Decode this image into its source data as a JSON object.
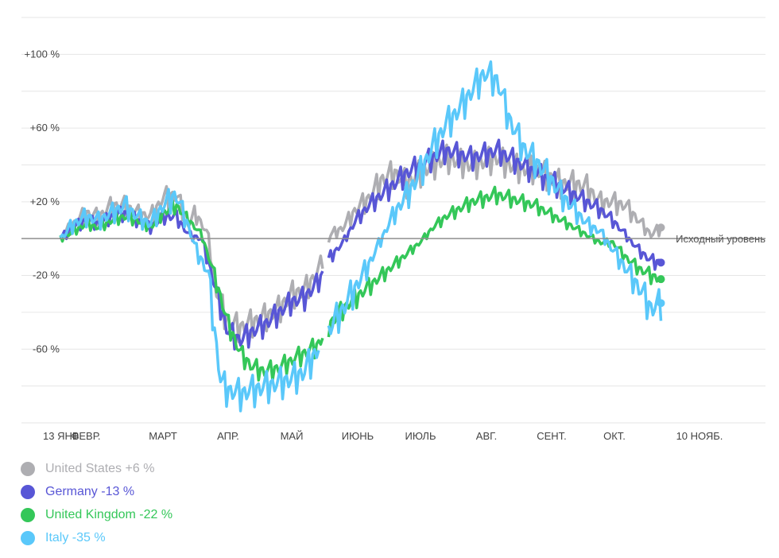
{
  "chart_data": {
    "type": "line",
    "title": "",
    "xlabel": "",
    "ylabel": "",
    "ylim": [
      -100,
      120
    ],
    "y_ticks": [
      {
        "value": 100,
        "label": "+100 %"
      },
      {
        "value": 60,
        "label": "+60 %"
      },
      {
        "value": 20,
        "label": "+20 %"
      },
      {
        "value": -20,
        "label": "-20 %"
      },
      {
        "value": -60,
        "label": "-60 %"
      }
    ],
    "x_ticks": [
      "13 ЯНВ.",
      "ФЕВР.",
      "МАРТ",
      "АПР.",
      "МАЙ",
      "ИЮНЬ",
      "ИЮЛЬ",
      "АВГ.",
      "СЕНТ.",
      "ОКТ.",
      "10 НОЯБ."
    ],
    "baseline_label": "Исходный уровень",
    "grid": true,
    "legend_position": "bottom-left",
    "series": [
      {
        "name": "United States",
        "legend": "United States +6 %",
        "color": "#aeaeb2",
        "anchors": [
          [
            0,
            0
          ],
          [
            0.02,
            8
          ],
          [
            0.04,
            14
          ],
          [
            0.06,
            12
          ],
          [
            0.08,
            18
          ],
          [
            0.1,
            18
          ],
          [
            0.12,
            14
          ],
          [
            0.14,
            12
          ],
          [
            0.16,
            22
          ],
          [
            0.18,
            24
          ],
          [
            0.2,
            8
          ],
          [
            0.21,
            14
          ],
          [
            0.23,
            2
          ],
          [
            0.24,
            -25
          ],
          [
            0.26,
            -45
          ],
          [
            0.28,
            -48
          ],
          [
            0.3,
            -45
          ],
          [
            0.32,
            -42
          ],
          [
            0.34,
            -38
          ],
          [
            0.36,
            -30
          ],
          [
            0.38,
            -28
          ],
          [
            0.4,
            -18
          ],
          [
            0.41,
            -10
          ],
          [
            0.42,
            2
          ],
          [
            0.44,
            6
          ],
          [
            0.46,
            16
          ],
          [
            0.48,
            22
          ],
          [
            0.5,
            32
          ],
          [
            0.52,
            36
          ],
          [
            0.54,
            30
          ],
          [
            0.56,
            36
          ],
          [
            0.58,
            40
          ],
          [
            0.6,
            44
          ],
          [
            0.62,
            42
          ],
          [
            0.64,
            40
          ],
          [
            0.66,
            42
          ],
          [
            0.68,
            44
          ],
          [
            0.7,
            40
          ],
          [
            0.72,
            38
          ],
          [
            0.74,
            38
          ],
          [
            0.76,
            34
          ],
          [
            0.78,
            30
          ],
          [
            0.8,
            30
          ],
          [
            0.82,
            28
          ],
          [
            0.84,
            20
          ],
          [
            0.86,
            20
          ],
          [
            0.88,
            18
          ],
          [
            0.9,
            10
          ],
          [
            0.92,
            2
          ],
          [
            0.935,
            6
          ]
        ],
        "amp": 7,
        "gaps": [
          [
            0.41,
            0.415
          ]
        ]
      },
      {
        "name": "Germany",
        "legend": "Germany -13 %",
        "color": "#5856d6",
        "anchors": [
          [
            0,
            0
          ],
          [
            0.02,
            6
          ],
          [
            0.04,
            10
          ],
          [
            0.06,
            8
          ],
          [
            0.08,
            12
          ],
          [
            0.1,
            14
          ],
          [
            0.12,
            10
          ],
          [
            0.14,
            6
          ],
          [
            0.16,
            12
          ],
          [
            0.18,
            12
          ],
          [
            0.2,
            2
          ],
          [
            0.22,
            0
          ],
          [
            0.24,
            -25
          ],
          [
            0.26,
            -50
          ],
          [
            0.28,
            -55
          ],
          [
            0.3,
            -50
          ],
          [
            0.32,
            -46
          ],
          [
            0.34,
            -40
          ],
          [
            0.36,
            -34
          ],
          [
            0.38,
            -32
          ],
          [
            0.4,
            -24
          ],
          [
            0.41,
            -18
          ],
          [
            0.42,
            -10
          ],
          [
            0.44,
            -2
          ],
          [
            0.46,
            10
          ],
          [
            0.48,
            18
          ],
          [
            0.5,
            24
          ],
          [
            0.52,
            30
          ],
          [
            0.54,
            36
          ],
          [
            0.56,
            40
          ],
          [
            0.58,
            44
          ],
          [
            0.6,
            48
          ],
          [
            0.62,
            46
          ],
          [
            0.64,
            44
          ],
          [
            0.66,
            46
          ],
          [
            0.68,
            48
          ],
          [
            0.7,
            44
          ],
          [
            0.72,
            40
          ],
          [
            0.74,
            36
          ],
          [
            0.76,
            32
          ],
          [
            0.78,
            28
          ],
          [
            0.8,
            24
          ],
          [
            0.82,
            20
          ],
          [
            0.84,
            16
          ],
          [
            0.86,
            10
          ],
          [
            0.88,
            2
          ],
          [
            0.9,
            -6
          ],
          [
            0.92,
            -12
          ],
          [
            0.935,
            -13
          ]
        ],
        "amp": 6,
        "gaps": [
          [
            0.41,
            0.415
          ]
        ]
      },
      {
        "name": "United Kingdom",
        "legend": "United Kingdom -22 %",
        "color": "#34c759",
        "anchors": [
          [
            0,
            0
          ],
          [
            0.02,
            4
          ],
          [
            0.04,
            8
          ],
          [
            0.06,
            6
          ],
          [
            0.08,
            10
          ],
          [
            0.1,
            12
          ],
          [
            0.12,
            10
          ],
          [
            0.14,
            6
          ],
          [
            0.16,
            14
          ],
          [
            0.18,
            18
          ],
          [
            0.2,
            10
          ],
          [
            0.22,
            2
          ],
          [
            0.24,
            -20
          ],
          [
            0.26,
            -45
          ],
          [
            0.28,
            -62
          ],
          [
            0.3,
            -70
          ],
          [
            0.32,
            -72
          ],
          [
            0.34,
            -70
          ],
          [
            0.36,
            -66
          ],
          [
            0.38,
            -62
          ],
          [
            0.4,
            -58
          ],
          [
            0.41,
            -52
          ],
          [
            0.42,
            -46
          ],
          [
            0.44,
            -38
          ],
          [
            0.46,
            -32
          ],
          [
            0.48,
            -26
          ],
          [
            0.5,
            -20
          ],
          [
            0.52,
            -14
          ],
          [
            0.54,
            -8
          ],
          [
            0.56,
            -2
          ],
          [
            0.58,
            6
          ],
          [
            0.6,
            12
          ],
          [
            0.62,
            16
          ],
          [
            0.64,
            20
          ],
          [
            0.66,
            22
          ],
          [
            0.68,
            24
          ],
          [
            0.7,
            22
          ],
          [
            0.72,
            20
          ],
          [
            0.74,
            18
          ],
          [
            0.76,
            14
          ],
          [
            0.78,
            10
          ],
          [
            0.8,
            6
          ],
          [
            0.82,
            2
          ],
          [
            0.84,
            -2
          ],
          [
            0.86,
            -2
          ],
          [
            0.88,
            -10
          ],
          [
            0.9,
            -16
          ],
          [
            0.92,
            -20
          ],
          [
            0.935,
            -22
          ]
        ],
        "amp": 5,
        "gaps": [
          [
            0.41,
            0.415
          ]
        ]
      },
      {
        "name": "Italy",
        "legend": "Italy -35 %",
        "color": "#5ac8fa",
        "anchors": [
          [
            0,
            0
          ],
          [
            0.02,
            8
          ],
          [
            0.04,
            12
          ],
          [
            0.06,
            10
          ],
          [
            0.08,
            14
          ],
          [
            0.1,
            18
          ],
          [
            0.12,
            12
          ],
          [
            0.14,
            8
          ],
          [
            0.16,
            18
          ],
          [
            0.18,
            24
          ],
          [
            0.2,
            6
          ],
          [
            0.21,
            -5
          ],
          [
            0.22,
            -12
          ],
          [
            0.23,
            -18
          ],
          [
            0.24,
            -50
          ],
          [
            0.25,
            -78
          ],
          [
            0.26,
            -82
          ],
          [
            0.28,
            -84
          ],
          [
            0.3,
            -82
          ],
          [
            0.32,
            -80
          ],
          [
            0.34,
            -78
          ],
          [
            0.36,
            -76
          ],
          [
            0.38,
            -72
          ],
          [
            0.39,
            -66
          ],
          [
            0.4,
            -60
          ],
          [
            0.41,
            -55
          ],
          [
            0.42,
            -48
          ],
          [
            0.44,
            -38
          ],
          [
            0.46,
            -26
          ],
          [
            0.48,
            -14
          ],
          [
            0.5,
            0
          ],
          [
            0.52,
            14
          ],
          [
            0.54,
            24
          ],
          [
            0.56,
            36
          ],
          [
            0.58,
            50
          ],
          [
            0.6,
            62
          ],
          [
            0.62,
            70
          ],
          [
            0.64,
            80
          ],
          [
            0.66,
            90
          ],
          [
            0.68,
            86
          ],
          [
            0.7,
            64
          ],
          [
            0.72,
            50
          ],
          [
            0.74,
            42
          ],
          [
            0.76,
            34
          ],
          [
            0.78,
            24
          ],
          [
            0.8,
            16
          ],
          [
            0.82,
            8
          ],
          [
            0.84,
            4
          ],
          [
            0.86,
            -6
          ],
          [
            0.88,
            -16
          ],
          [
            0.9,
            -26
          ],
          [
            0.92,
            -38
          ],
          [
            0.935,
            -35
          ]
        ],
        "amp": 8,
        "gaps": [
          [
            0.405,
            0.415
          ]
        ]
      }
    ]
  }
}
